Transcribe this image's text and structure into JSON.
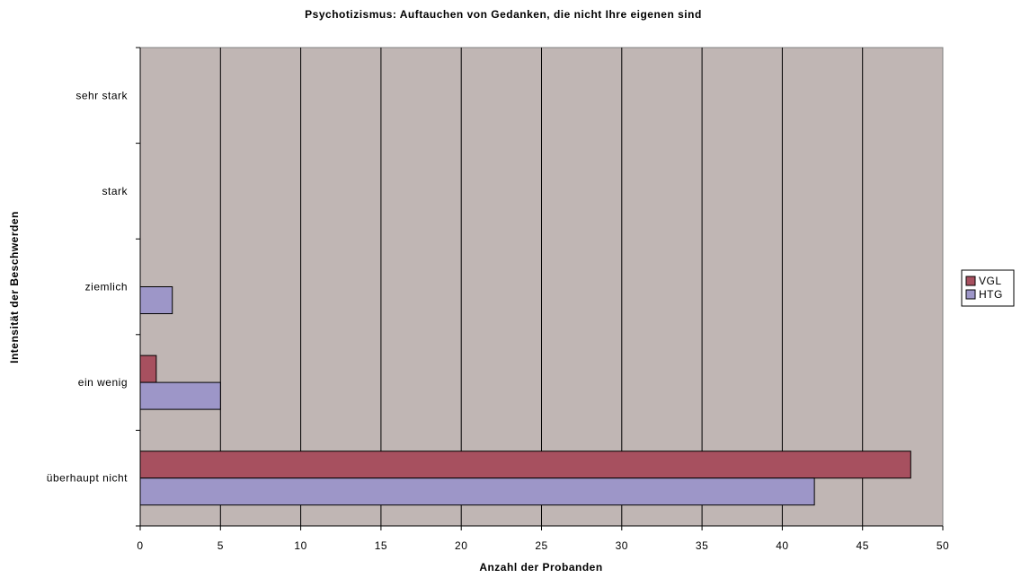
{
  "chart_data": {
    "type": "bar",
    "orientation": "horizontal",
    "title": "Psychotizismus: Auftauchen von Gedanken, die nicht Ihre eigenen sind",
    "xlabel": "Anzahl der Probanden",
    "ylabel": "Intensität der Beschwerden",
    "categories": [
      "überhaupt nicht",
      "ein wenig",
      "ziemlich",
      "stark",
      "sehr stark"
    ],
    "series": [
      {
        "name": "VGL",
        "color": "#a7505f",
        "values": [
          48,
          1,
          0,
          0,
          0
        ]
      },
      {
        "name": "HTG",
        "color": "#9d96c8",
        "values": [
          42,
          5,
          2,
          0,
          0
        ]
      }
    ],
    "xlim": [
      0,
      50
    ],
    "xticks": [
      0,
      5,
      10,
      15,
      20,
      25,
      30,
      35,
      40,
      45,
      50
    ],
    "grid": true,
    "plot_background": "#c0b6b4",
    "legend_position": "right"
  }
}
